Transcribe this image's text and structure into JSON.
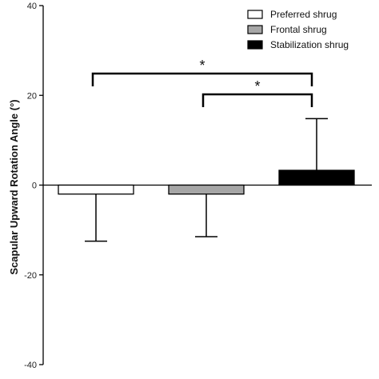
{
  "chart_data": {
    "type": "bar",
    "ylabel": "Scapular Upward Rotation Angle  (°)",
    "xlabel": "",
    "ylim": [
      -40,
      40
    ],
    "yticks": [
      40,
      20,
      0,
      -20,
      -40
    ],
    "grid": false,
    "legend_position": "top-right",
    "series": [
      {
        "name": "Preferred shrug",
        "value": -2.0,
        "error": 10.5,
        "error_direction": "down",
        "color": "#ffffff"
      },
      {
        "name": "Frontal shrug",
        "value": -2.0,
        "error": 9.5,
        "error_direction": "down",
        "color": "#a6a6a6"
      },
      {
        "name": "Stabilization shrug",
        "value": 3.3,
        "error": 11.5,
        "error_direction": "up",
        "color": "#000000"
      }
    ],
    "significance": [
      {
        "from": 0,
        "to": 2,
        "label": "*"
      },
      {
        "from": 1,
        "to": 2,
        "label": "*"
      }
    ]
  }
}
